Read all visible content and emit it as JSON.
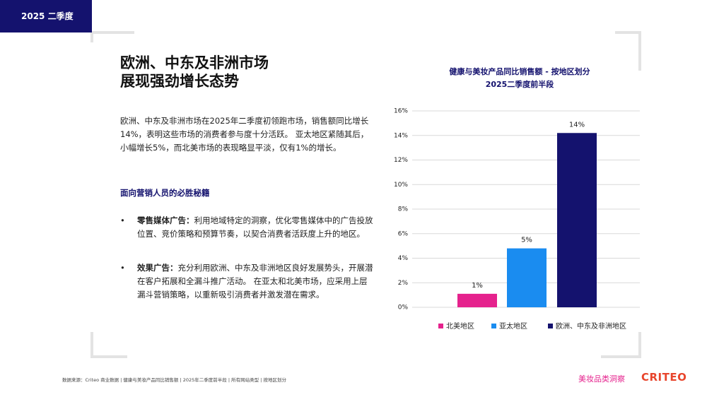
{
  "badge": "2025 二季度",
  "heading": [
    "欧洲、中东及非洲市场",
    "展现强劲增长态势"
  ],
  "paragraph": "欧洲、中东及非洲市场在2025年二季度初领跑市场，销售额同比增长14%，表明这些市场的消费者参与度十分活跃。 亚太地区紧随其后，小幅增长5%，而北美市场的表现略显平淡，仅有1%的增长。",
  "subheading": "面向营销人员的必胜秘籍",
  "bullets": [
    {
      "label": "零售媒体广告：",
      "text": "利用地域特定的洞察，优化零售媒体中的广告投放位置、竞价策略和预算节奏，以契合消费者活跃度上升的地区。"
    },
    {
      "label": "效果广告：",
      "text": "充分利用欧洲、中东及非洲地区良好发展势头，开展潜在客户拓展和全漏斗推广活动。 在亚太和北美市场，应采用上层漏斗营销策略，以重新吸引消费者并激发潜在需求。"
    }
  ],
  "footer": {
    "source": "数据来源：Criteo 商业数据 | 健康与美妆产品同比销售额 | 2025年二季度前半段 | 所有网站类型 | 按地区划分",
    "tag": "美妆品类洞察",
    "logo": "CRITEO"
  },
  "chart_data": {
    "type": "bar",
    "title": "健康与美妆产品同比销售额 - 按地区划分",
    "subtitle": "2025二季度前半段",
    "categories": [
      "北美地区",
      "亚太地区",
      "欧洲、中东及非洲地区"
    ],
    "values": [
      1.1,
      4.8,
      14.2
    ],
    "value_labels": [
      "1%",
      "5%",
      "14%"
    ],
    "colors": [
      "#e5228d",
      "#1a8cf0",
      "#14126e"
    ],
    "ylim": [
      0,
      16
    ],
    "yticks": [
      {
        "value": 0,
        "label": "0%"
      },
      {
        "value": 2,
        "label": "2%"
      },
      {
        "value": 4,
        "label": "4%"
      },
      {
        "value": 6,
        "label": "6%"
      },
      {
        "value": 8,
        "label": "8%"
      },
      {
        "value": 10,
        "label": "10%"
      },
      {
        "value": 12,
        "label": "12%"
      },
      {
        "value": 14,
        "label": "14%"
      },
      {
        "value": 16,
        "label": "16%"
      }
    ],
    "grid": true,
    "legend": "bottom"
  }
}
